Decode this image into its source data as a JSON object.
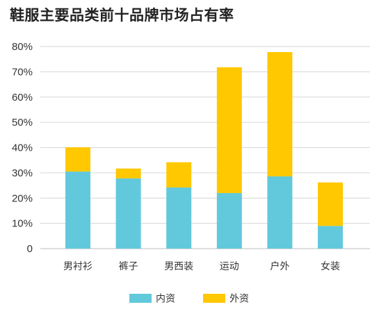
{
  "chart_data": {
    "type": "bar",
    "stacked": true,
    "title": "鞋服主要品类前十品牌市场占有率",
    "categories": [
      "男衬衫",
      "裤子",
      "男西装",
      "运动",
      "户外",
      "女装"
    ],
    "series": [
      {
        "name": "内资",
        "color": "#62c9dc",
        "values": [
          30.5,
          27.8,
          24.2,
          22.0,
          28.6,
          9.0
        ]
      },
      {
        "name": "外资",
        "color": "#ffc800",
        "values": [
          9.6,
          3.9,
          10.0,
          49.8,
          49.2,
          17.2
        ]
      }
    ],
    "y_ticks": [
      "0",
      "10%",
      "20%",
      "30%",
      "40%",
      "50%",
      "60%",
      "70%",
      "80%"
    ],
    "ylim": [
      0,
      80
    ],
    "grid": true,
    "legend": "bottom-center"
  }
}
